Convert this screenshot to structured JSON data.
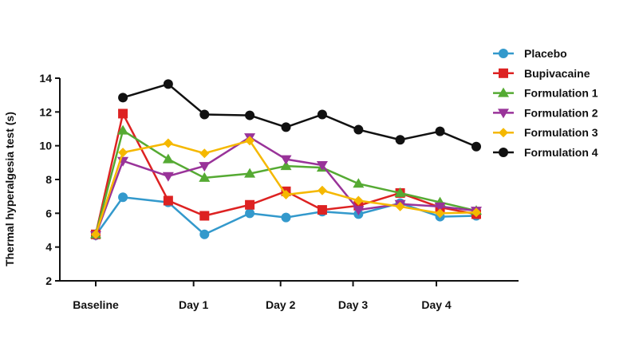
{
  "chart_data": {
    "type": "line",
    "title": "",
    "xlabel": "",
    "ylabel": "Thermal hyperalgesia test (s)",
    "ylim": [
      2,
      14
    ],
    "yticks": [
      "2",
      "4",
      "6",
      "8",
      "10",
      "12",
      "14"
    ],
    "xlim": [
      0,
      21
    ],
    "xticks": [
      {
        "label": "Baseline",
        "x": 0
      },
      {
        "label": "Day 1",
        "x": 5.4
      },
      {
        "label": "Day 2",
        "x": 10.2
      },
      {
        "label": "Day 3",
        "x": 14.2
      },
      {
        "label": "Day 4",
        "x": 18.8
      }
    ],
    "grid": false,
    "legend_position": "right",
    "x": [
      0,
      1.5,
      4,
      6,
      8.5,
      10.5,
      12.5,
      14.5,
      16.8,
      19,
      21
    ],
    "series": [
      {
        "name": "Placebo",
        "color": "#3399cc",
        "marker": "circle",
        "values": [
          4.7,
          6.95,
          6.65,
          4.75,
          6.0,
          5.75,
          6.1,
          5.95,
          6.6,
          5.8,
          5.85
        ]
      },
      {
        "name": "Bupivacaine",
        "color": "#dd2222",
        "marker": "square",
        "values": [
          4.75,
          11.9,
          6.75,
          5.85,
          6.5,
          7.3,
          6.2,
          6.45,
          7.2,
          6.35,
          5.95
        ]
      },
      {
        "name": "Formulation 1",
        "color": "#55aa33",
        "marker": "triangle-up",
        "values": [
          4.75,
          10.9,
          9.2,
          8.1,
          8.35,
          8.8,
          8.7,
          7.75,
          7.2,
          6.65,
          6.15
        ]
      },
      {
        "name": "Formulation 2",
        "color": "#993399",
        "marker": "triangle-down",
        "values": [
          4.7,
          9.1,
          8.2,
          8.8,
          10.5,
          9.2,
          8.85,
          6.2,
          6.55,
          6.4,
          6.15
        ]
      },
      {
        "name": "Formulation 3",
        "color": "#f5b800",
        "marker": "diamond",
        "values": [
          4.75,
          9.6,
          10.15,
          9.55,
          10.3,
          7.1,
          7.35,
          6.75,
          6.4,
          6.0,
          6.05
        ]
      },
      {
        "name": "Formulation 4",
        "color": "#111111",
        "marker": "circle",
        "values": [
          null,
          12.85,
          13.65,
          11.85,
          11.8,
          11.1,
          11.85,
          10.95,
          10.35,
          10.85,
          9.95
        ]
      }
    ]
  }
}
